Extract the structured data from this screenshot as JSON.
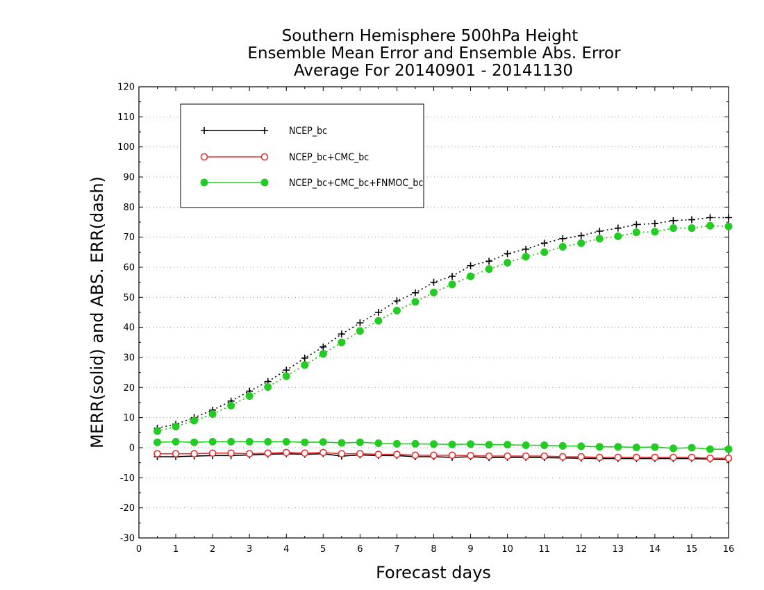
{
  "chart_data": {
    "type": "line",
    "title": [
      "Southern Hemisphere 500hPa Height",
      "Ensemble Mean Error and Ensemble Abs. Error",
      "Average For 20140901 - 20141130"
    ],
    "xlabel": "Forecast days",
    "ylabel": "MERR(solid) and ABS. ERR(dash)",
    "xlim": [
      0,
      16
    ],
    "ylim": [
      -30,
      120
    ],
    "xticks": [
      0,
      1,
      2,
      3,
      4,
      5,
      6,
      7,
      8,
      9,
      10,
      11,
      12,
      13,
      14,
      15,
      16
    ],
    "yticks": [
      -30,
      -20,
      -10,
      0,
      10,
      20,
      30,
      40,
      50,
      60,
      70,
      80,
      90,
      100,
      110,
      120
    ],
    "grid": "horizontal-dotted",
    "legend_position": "top-left",
    "x": [
      0.5,
      1,
      1.5,
      2,
      2.5,
      3,
      3.5,
      4,
      4.5,
      5,
      5.5,
      6,
      6.5,
      7,
      7.5,
      8,
      8.5,
      9,
      9.5,
      10,
      10.5,
      11,
      11.5,
      12,
      12.5,
      13,
      13.5,
      14,
      14.5,
      15,
      15.5,
      16
    ],
    "series": [
      {
        "name": "NCEP_bc",
        "color": "#000000",
        "marker": "plus",
        "merr": [
          -3,
          -3,
          -2.8,
          -2.6,
          -2.6,
          -2.4,
          -2.2,
          -2,
          -2.2,
          -2,
          -2.8,
          -2.4,
          -2.6,
          -2.6,
          -3,
          -3,
          -3.2,
          -3,
          -3.3,
          -3.2,
          -3.2,
          -3.3,
          -3.4,
          -3.5,
          -3.6,
          -3.6,
          -3.6,
          -3.6,
          -3.6,
          -3.6,
          -3.8,
          -4
        ],
        "abs_err": [
          6.5,
          7.8,
          10,
          12.5,
          15.5,
          18.8,
          22,
          25.8,
          29.8,
          33.5,
          37.8,
          41.5,
          45,
          48.8,
          51.5,
          55,
          57,
          60.5,
          62,
          64.5,
          66,
          68,
          69.5,
          70.5,
          72,
          73,
          74.2,
          74.5,
          75.5,
          75.8,
          76.5,
          76.5
        ]
      },
      {
        "name": "NCEP_bc+CMC_bc",
        "color": "#e83030",
        "marker": "open-circle",
        "merr": [
          -2,
          -2,
          -2,
          -1.8,
          -1.8,
          -2,
          -1.8,
          -1.6,
          -1.8,
          -1.6,
          -2,
          -2,
          -2.2,
          -2.2,
          -2.5,
          -2.5,
          -2.5,
          -2.6,
          -2.8,
          -2.8,
          -2.8,
          -2.8,
          -3,
          -3,
          -3.2,
          -3.2,
          -3.2,
          -3.2,
          -3.2,
          -3.2,
          -3.5,
          -3.5
        ],
        "abs_err": [
          5.5,
          7,
          9,
          11.2,
          14,
          17.2,
          20.2,
          23.8,
          27.5,
          31.2,
          35,
          38.8,
          42.2,
          45.6,
          48.5,
          51.6,
          54.3,
          57,
          59.4,
          61.5,
          63.5,
          65,
          66.8,
          68,
          69.5,
          70.3,
          71.6,
          71.8,
          73,
          73,
          73.8,
          73.6
        ]
      },
      {
        "name": "NCEP_bc+CMC_bc+FNMOC_bc",
        "color": "#22cc22",
        "marker": "filled-circle",
        "merr": [
          1.8,
          2,
          1.8,
          2,
          2,
          2,
          2,
          2,
          1.8,
          1.9,
          1.6,
          1.8,
          1.5,
          1.3,
          1.3,
          1.2,
          1.1,
          1.2,
          1,
          1,
          0.8,
          0.8,
          0.6,
          0.5,
          0.3,
          0.3,
          0.1,
          0.2,
          -0.2,
          0,
          -0.5,
          -0.5
        ],
        "abs_err": [
          5.5,
          7,
          9,
          11.2,
          14,
          17.2,
          20.2,
          23.8,
          27.5,
          31.2,
          35,
          38.8,
          42.2,
          45.6,
          48.5,
          51.6,
          54.3,
          57,
          59.4,
          61.5,
          63.5,
          65,
          66.8,
          68,
          69.5,
          70.3,
          71.6,
          71.8,
          73,
          73,
          73.8,
          73.6
        ]
      }
    ]
  }
}
